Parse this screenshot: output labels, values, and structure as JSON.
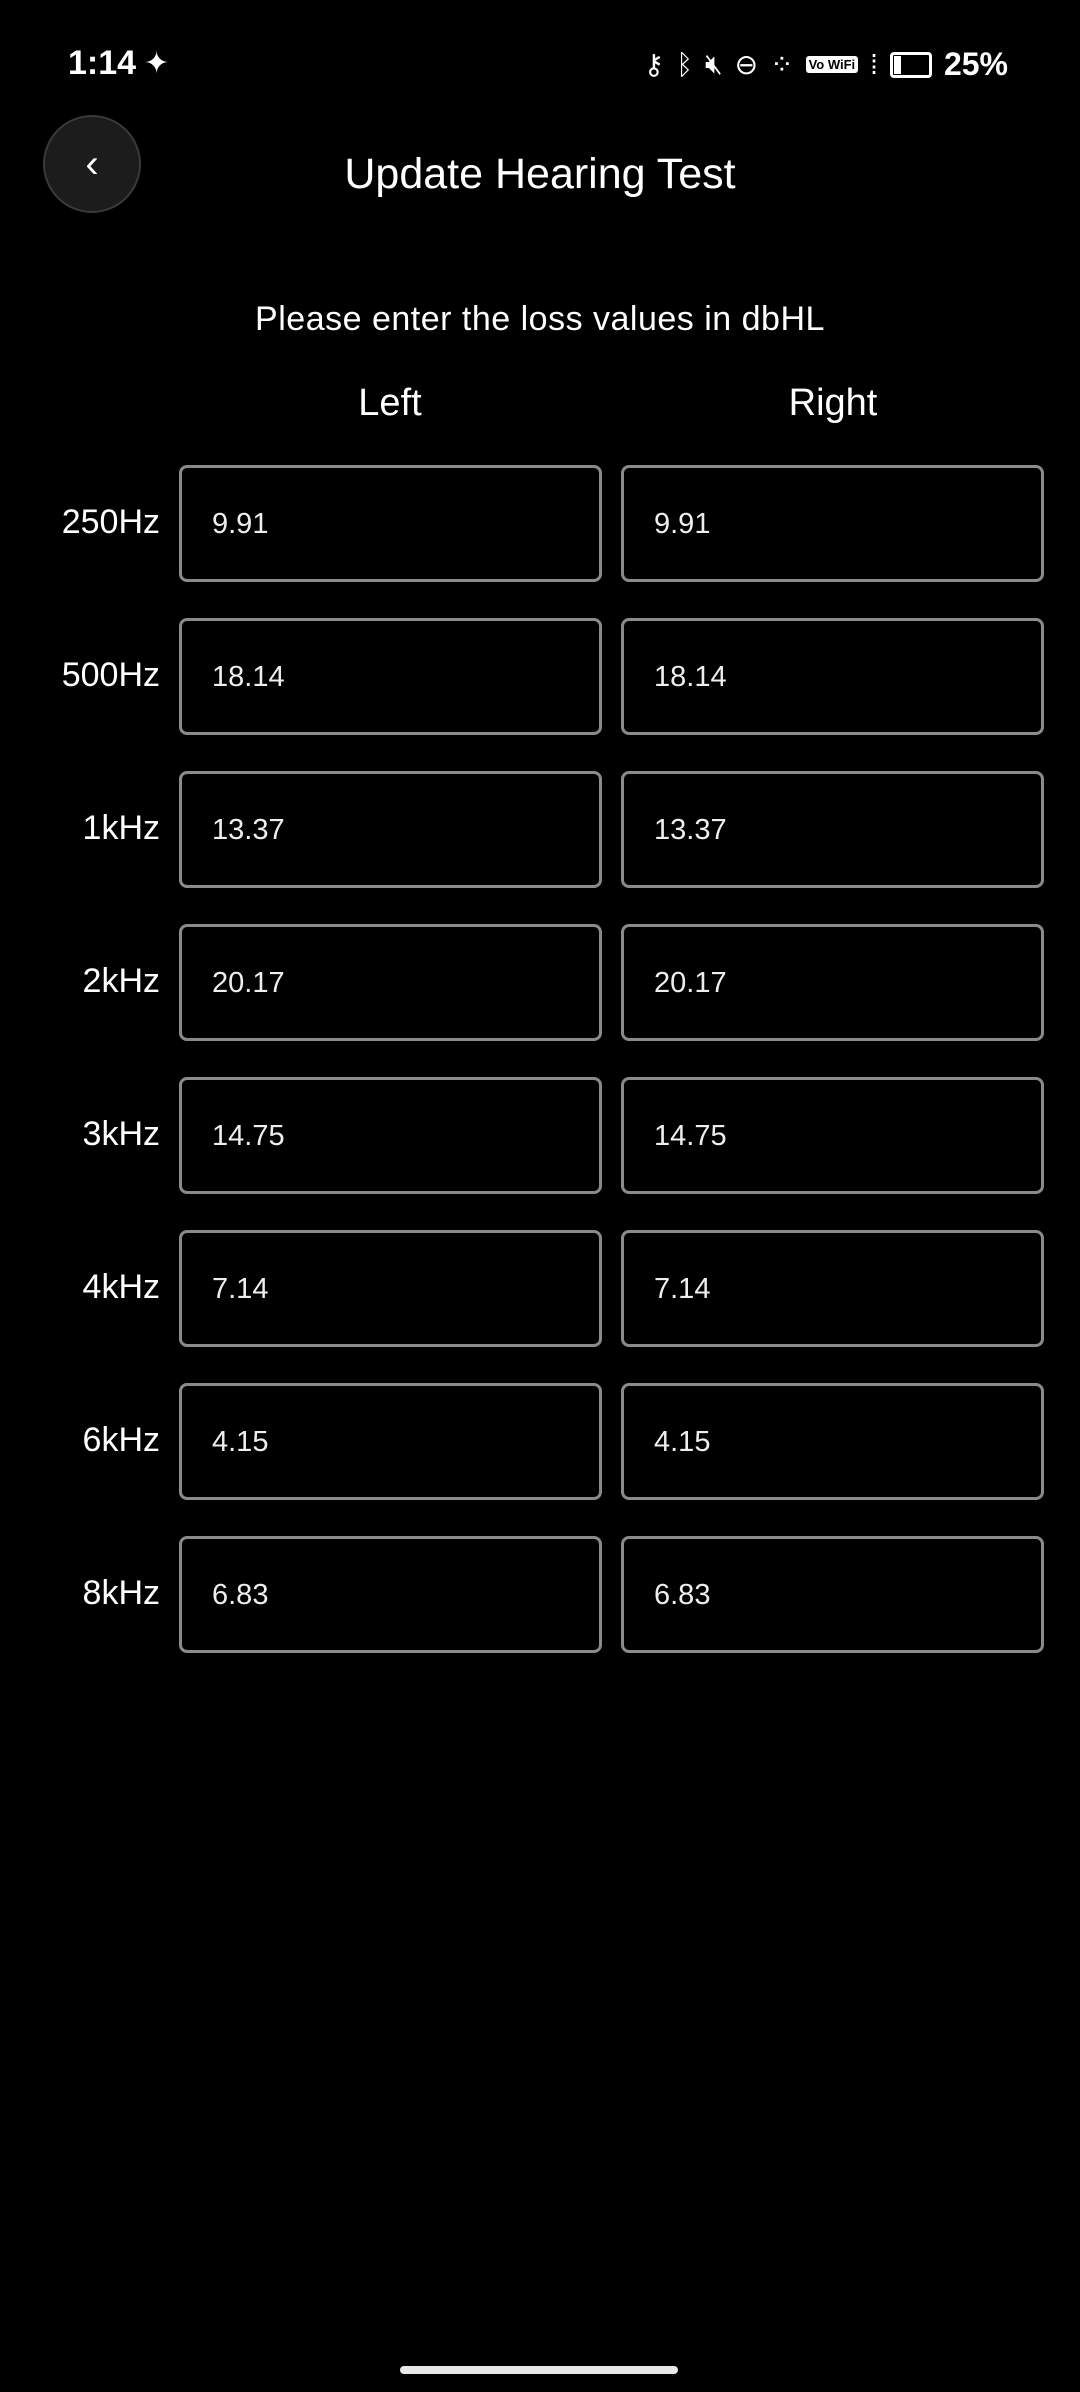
{
  "status_bar": {
    "time": "1:14",
    "battery": "25%",
    "battery_level": 25,
    "vowifi": "Vo WiFi",
    "icons": [
      "vpn-key-icon",
      "bluetooth-icon",
      "mute-icon",
      "dnd-icon",
      "dots-icon",
      "vowifi-icon",
      "signal-icon",
      "battery-icon"
    ]
  },
  "header": {
    "title": "Update Hearing Test",
    "back_icon": "chevron-left-icon"
  },
  "form": {
    "instruction": "Please enter the loss values in dbHL",
    "left_label": "Left",
    "right_label": "Right",
    "rows": [
      {
        "freq": "250Hz",
        "left": "9.91",
        "right": "9.91"
      },
      {
        "freq": "500Hz",
        "left": "18.14",
        "right": "18.14"
      },
      {
        "freq": "1kHz",
        "left": "13.37",
        "right": "13.37"
      },
      {
        "freq": "2kHz",
        "left": "20.17",
        "right": "20.17"
      },
      {
        "freq": "3kHz",
        "left": "14.75",
        "right": "14.75"
      },
      {
        "freq": "4kHz",
        "left": "7.14",
        "right": "7.14"
      },
      {
        "freq": "6kHz",
        "left": "4.15",
        "right": "4.15"
      },
      {
        "freq": "8kHz",
        "left": "6.83",
        "right": "6.83"
      }
    ]
  }
}
